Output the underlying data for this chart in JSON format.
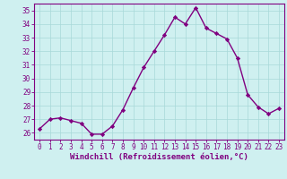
{
  "x": [
    0,
    1,
    2,
    3,
    4,
    5,
    6,
    7,
    8,
    9,
    10,
    11,
    12,
    13,
    14,
    15,
    16,
    17,
    18,
    19,
    20,
    21,
    22,
    23
  ],
  "y": [
    26.3,
    27.0,
    27.1,
    26.9,
    26.7,
    25.9,
    25.9,
    26.5,
    27.7,
    29.3,
    30.8,
    32.0,
    33.2,
    34.5,
    34.0,
    35.2,
    33.7,
    33.3,
    32.9,
    31.5,
    28.8,
    27.9,
    27.4,
    27.8
  ],
  "line_color": "#800080",
  "marker": "D",
  "marker_size": 2.2,
  "bg_color": "#cff0f0",
  "grid_color": "#a8d8d8",
  "xlabel": "Windchill (Refroidissement éolien,°C)",
  "xlabel_color": "#800080",
  "tick_color": "#800080",
  "ylim": [
    25.5,
    35.5
  ],
  "xlim": [
    -0.5,
    23.5
  ],
  "yticks": [
    26,
    27,
    28,
    29,
    30,
    31,
    32,
    33,
    34,
    35
  ],
  "xticks": [
    0,
    1,
    2,
    3,
    4,
    5,
    6,
    7,
    8,
    9,
    10,
    11,
    12,
    13,
    14,
    15,
    16,
    17,
    18,
    19,
    20,
    21,
    22,
    23
  ],
  "spine_color": "#800080",
  "tick_labelsize": 5.5,
  "xlabel_fontsize": 6.5,
  "linewidth": 1.0
}
